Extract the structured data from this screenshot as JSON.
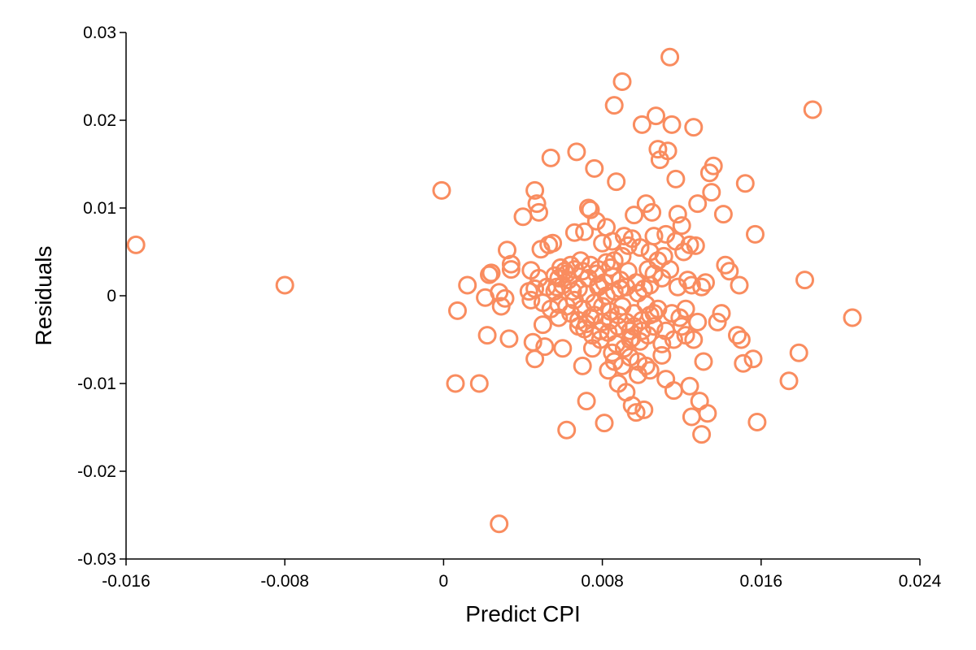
{
  "chart_data": {
    "type": "scatter",
    "xlabel": "Predict CPI",
    "ylabel": "Residuals",
    "xlim": [
      -0.016,
      0.024
    ],
    "ylim": [
      -0.03,
      0.03
    ],
    "xticks": [
      -0.016,
      -0.008,
      0,
      0.008,
      0.016,
      0.024
    ],
    "xtick_labels": [
      "-0.016",
      "-0.008",
      "0",
      "0.008",
      "0.016",
      "0.024"
    ],
    "yticks": [
      -0.03,
      -0.02,
      -0.01,
      0,
      0.01,
      0.02,
      0.03
    ],
    "ytick_labels": [
      "-0.03",
      "-0.02",
      "-0.01",
      "0",
      "0.01",
      "0.02",
      "0.03"
    ],
    "grid": false,
    "marker": "open-circle",
    "marker_color": "#f98c5f",
    "series": [
      {
        "points": [
          [
            -0.0155,
            0.0058
          ],
          [
            -0.008,
            0.0012
          ],
          [
            -0.0001,
            0.012
          ],
          [
            0.0007,
            -0.0017
          ],
          [
            0.0006,
            -0.01
          ],
          [
            0.0012,
            0.0012
          ],
          [
            0.0018,
            -0.01
          ],
          [
            0.0021,
            -0.0002
          ],
          [
            0.0023,
            0.0024
          ],
          [
            0.0022,
            -0.0045
          ],
          [
            0.0024,
            0.0026
          ],
          [
            0.0028,
            0.0004
          ],
          [
            0.0029,
            -0.0012
          ],
          [
            0.0031,
            -0.0003
          ],
          [
            0.0032,
            0.0052
          ],
          [
            0.0034,
            0.0036
          ],
          [
            0.0033,
            -0.0049
          ],
          [
            0.0034,
            0.003
          ],
          [
            0.0028,
            -0.026
          ],
          [
            0.004,
            0.009
          ],
          [
            0.0043,
            0.0005
          ],
          [
            0.0044,
            0.0029
          ],
          [
            0.0045,
            -0.0053
          ],
          [
            0.0046,
            0.012
          ],
          [
            0.0047,
            0.0105
          ],
          [
            0.0048,
            0.0095
          ],
          [
            0.0046,
            -0.0072
          ],
          [
            0.0049,
            0.0053
          ],
          [
            0.005,
            -0.0033
          ],
          [
            0.0051,
            -0.0058
          ],
          [
            0.0053,
            0.0058
          ],
          [
            0.0054,
            0.0157
          ],
          [
            0.0055,
            0.006
          ],
          [
            0.0056,
            0.0023
          ],
          [
            0.0057,
            0.001
          ],
          [
            0.0058,
            -0.001
          ],
          [
            0.0059,
            0.0032
          ],
          [
            0.006,
            -0.006
          ],
          [
            0.0061,
            0.0028
          ],
          [
            0.0062,
            -0.0153
          ],
          [
            0.0063,
            0.0018
          ],
          [
            0.0064,
            0.0035
          ],
          [
            0.0065,
            0.0005
          ],
          [
            0.0066,
            0.0072
          ],
          [
            0.0067,
            0.0164
          ],
          [
            0.0068,
            -0.0035
          ],
          [
            0.0069,
            0.004
          ],
          [
            0.007,
            -0.008
          ],
          [
            0.0071,
            0.0073
          ],
          [
            0.0072,
            -0.012
          ],
          [
            0.0073,
            0.01
          ],
          [
            0.0074,
            0.0098
          ],
          [
            0.0075,
            -0.006
          ],
          [
            0.0076,
            0.0145
          ],
          [
            0.0077,
            0.0085
          ],
          [
            0.0078,
            0.001
          ],
          [
            0.0079,
            -0.004
          ],
          [
            0.008,
            0.006
          ],
          [
            0.0081,
            -0.0145
          ],
          [
            0.0082,
            0.0078
          ],
          [
            0.0083,
            -0.0085
          ],
          [
            0.0084,
            0.0032
          ],
          [
            0.0085,
            -0.0065
          ],
          [
            0.0086,
            0.0217
          ],
          [
            0.0087,
            0.013
          ],
          [
            0.0088,
            -0.01
          ],
          [
            0.0089,
            0.0008
          ],
          [
            0.009,
            0.0244
          ],
          [
            0.0091,
            0.0068
          ],
          [
            0.0092,
            -0.011
          ],
          [
            0.0093,
            0.0057
          ],
          [
            0.0094,
            -0.005
          ],
          [
            0.0095,
            -0.0125
          ],
          [
            0.0096,
            0.0092
          ],
          [
            0.0097,
            -0.0133
          ],
          [
            0.0098,
            -0.009
          ],
          [
            0.0099,
            0.0055
          ],
          [
            0.01,
            0.0195
          ],
          [
            0.0101,
            -0.013
          ],
          [
            0.0102,
            0.0105
          ],
          [
            0.0103,
            0.003
          ],
          [
            0.0104,
            -0.0085
          ],
          [
            0.0105,
            0.0095
          ],
          [
            0.0106,
            -0.002
          ],
          [
            0.0107,
            0.0205
          ],
          [
            0.0108,
            0.0167
          ],
          [
            0.0109,
            0.0155
          ],
          [
            0.011,
            -0.0068
          ],
          [
            0.0111,
            0.0045
          ],
          [
            0.0112,
            -0.0095
          ],
          [
            0.0113,
            0.0165
          ],
          [
            0.0114,
            0.0272
          ],
          [
            0.0115,
            0.0195
          ],
          [
            0.0116,
            -0.0108
          ],
          [
            0.0117,
            0.0133
          ],
          [
            0.0118,
            0.0093
          ],
          [
            0.0119,
            -0.0025
          ],
          [
            0.012,
            0.008
          ],
          [
            0.0121,
            0.005
          ],
          [
            0.0122,
            -0.0045
          ],
          [
            0.0123,
            0.0018
          ],
          [
            0.0124,
            -0.0103
          ],
          [
            0.0125,
            -0.0138
          ],
          [
            0.0126,
            0.0192
          ],
          [
            0.0127,
            0.0057
          ],
          [
            0.0128,
            0.0105
          ],
          [
            0.0129,
            -0.012
          ],
          [
            0.013,
            -0.0158
          ],
          [
            0.0131,
            -0.0075
          ],
          [
            0.0132,
            0.0015
          ],
          [
            0.0133,
            -0.0134
          ],
          [
            0.0134,
            0.014
          ],
          [
            0.0135,
            0.0118
          ],
          [
            0.0136,
            0.0148
          ],
          [
            0.0138,
            -0.003
          ],
          [
            0.014,
            -0.002
          ],
          [
            0.0141,
            0.0093
          ],
          [
            0.0142,
            0.0035
          ],
          [
            0.0144,
            0.0028
          ],
          [
            0.0148,
            -0.0045
          ],
          [
            0.0149,
            0.0012
          ],
          [
            0.015,
            -0.005
          ],
          [
            0.0151,
            -0.0077
          ],
          [
            0.0152,
            0.0128
          ],
          [
            0.0156,
            -0.0072
          ],
          [
            0.0157,
            0.007
          ],
          [
            0.0158,
            -0.0144
          ],
          [
            0.0174,
            -0.0097
          ],
          [
            0.0179,
            -0.0065
          ],
          [
            0.0182,
            0.0018
          ],
          [
            0.0186,
            0.0212
          ],
          [
            0.0206,
            -0.0025
          ],
          [
            0.0064,
            -0.002
          ],
          [
            0.0066,
            -0.0005
          ],
          [
            0.0068,
            0.0008
          ],
          [
            0.007,
            -0.0015
          ],
          [
            0.0072,
            0.0002
          ],
          [
            0.0074,
            -0.0025
          ],
          [
            0.0076,
            -0.0008
          ],
          [
            0.0078,
            0.0012
          ],
          [
            0.008,
            -0.003
          ],
          [
            0.0082,
            0.0
          ],
          [
            0.0084,
            -0.0018
          ],
          [
            0.0086,
            0.0005
          ],
          [
            0.0088,
            -0.0035
          ],
          [
            0.009,
            -0.0012
          ],
          [
            0.0092,
            0.001
          ],
          [
            0.0094,
            -0.004
          ],
          [
            0.0096,
            -0.002
          ],
          [
            0.0098,
            0.0003
          ],
          [
            0.01,
            -0.0028
          ],
          [
            0.0102,
            -0.001
          ],
          [
            0.0104,
            0.0012
          ],
          [
            0.0106,
            -0.0035
          ],
          [
            0.0108,
            -0.0015
          ],
          [
            0.011,
            0.002
          ],
          [
            0.0073,
            0.002
          ],
          [
            0.0077,
            0.0025
          ],
          [
            0.0081,
            0.0015
          ],
          [
            0.0085,
            0.0022
          ],
          [
            0.0089,
            0.0018
          ],
          [
            0.0093,
            0.0028
          ],
          [
            0.0097,
            0.0015
          ],
          [
            0.0101,
            0.0008
          ],
          [
            0.0071,
            -0.0038
          ],
          [
            0.0075,
            -0.0045
          ],
          [
            0.0079,
            -0.005
          ],
          [
            0.0083,
            -0.0042
          ],
          [
            0.0087,
            -0.0055
          ],
          [
            0.0091,
            -0.006
          ],
          [
            0.0095,
            -0.0048
          ],
          [
            0.0099,
            -0.0052
          ],
          [
            0.0103,
            -0.0045
          ],
          [
            0.006,
            0.0012
          ],
          [
            0.0062,
            -0.0012
          ],
          [
            0.0058,
            -0.0025
          ],
          [
            0.0056,
            0.0005
          ],
          [
            0.0054,
            -0.0015
          ],
          [
            0.0052,
            0.001
          ],
          [
            0.005,
            -0.0008
          ],
          [
            0.0048,
            0.002
          ],
          [
            0.0046,
            0.0008
          ],
          [
            0.0044,
            -0.0005
          ],
          [
            0.0115,
            -0.002
          ],
          [
            0.0118,
            0.001
          ],
          [
            0.0112,
            -0.004
          ],
          [
            0.012,
            -0.0035
          ],
          [
            0.0125,
            0.0012
          ],
          [
            0.0128,
            -0.003
          ],
          [
            0.013,
            0.001
          ],
          [
            0.0126,
            -0.005
          ],
          [
            0.0114,
            0.003
          ],
          [
            0.0108,
            0.004
          ],
          [
            0.0106,
            0.0025
          ],
          [
            0.0104,
            0.005
          ],
          [
            0.009,
            0.0045
          ],
          [
            0.0086,
            0.004
          ],
          [
            0.0082,
            0.0038
          ],
          [
            0.0078,
            0.003
          ],
          [
            0.0074,
            0.0035
          ],
          [
            0.007,
            0.0028
          ],
          [
            0.0066,
            0.003
          ],
          [
            0.0062,
            0.0025
          ],
          [
            0.0058,
            0.002
          ],
          [
            0.0068,
            -0.0028
          ],
          [
            0.0072,
            -0.0032
          ],
          [
            0.0076,
            -0.0022
          ],
          [
            0.008,
            -0.0012
          ],
          [
            0.0084,
            -0.0028
          ],
          [
            0.0088,
            -0.0022
          ],
          [
            0.0092,
            -0.003
          ],
          [
            0.0096,
            -0.0035
          ],
          [
            0.01,
            -0.004
          ],
          [
            0.0104,
            -0.0022
          ],
          [
            0.0094,
            -0.007
          ],
          [
            0.0098,
            -0.0075
          ],
          [
            0.0102,
            -0.008
          ],
          [
            0.009,
            -0.008
          ],
          [
            0.0086,
            -0.0075
          ],
          [
            0.011,
            -0.0055
          ],
          [
            0.0116,
            -0.005
          ],
          [
            0.0122,
            -0.0015
          ],
          [
            0.0106,
            0.0068
          ],
          [
            0.0112,
            0.007
          ],
          [
            0.0117,
            0.0062
          ],
          [
            0.0124,
            0.0058
          ],
          [
            0.0095,
            0.0065
          ],
          [
            0.0085,
            0.0062
          ]
        ]
      }
    ]
  }
}
